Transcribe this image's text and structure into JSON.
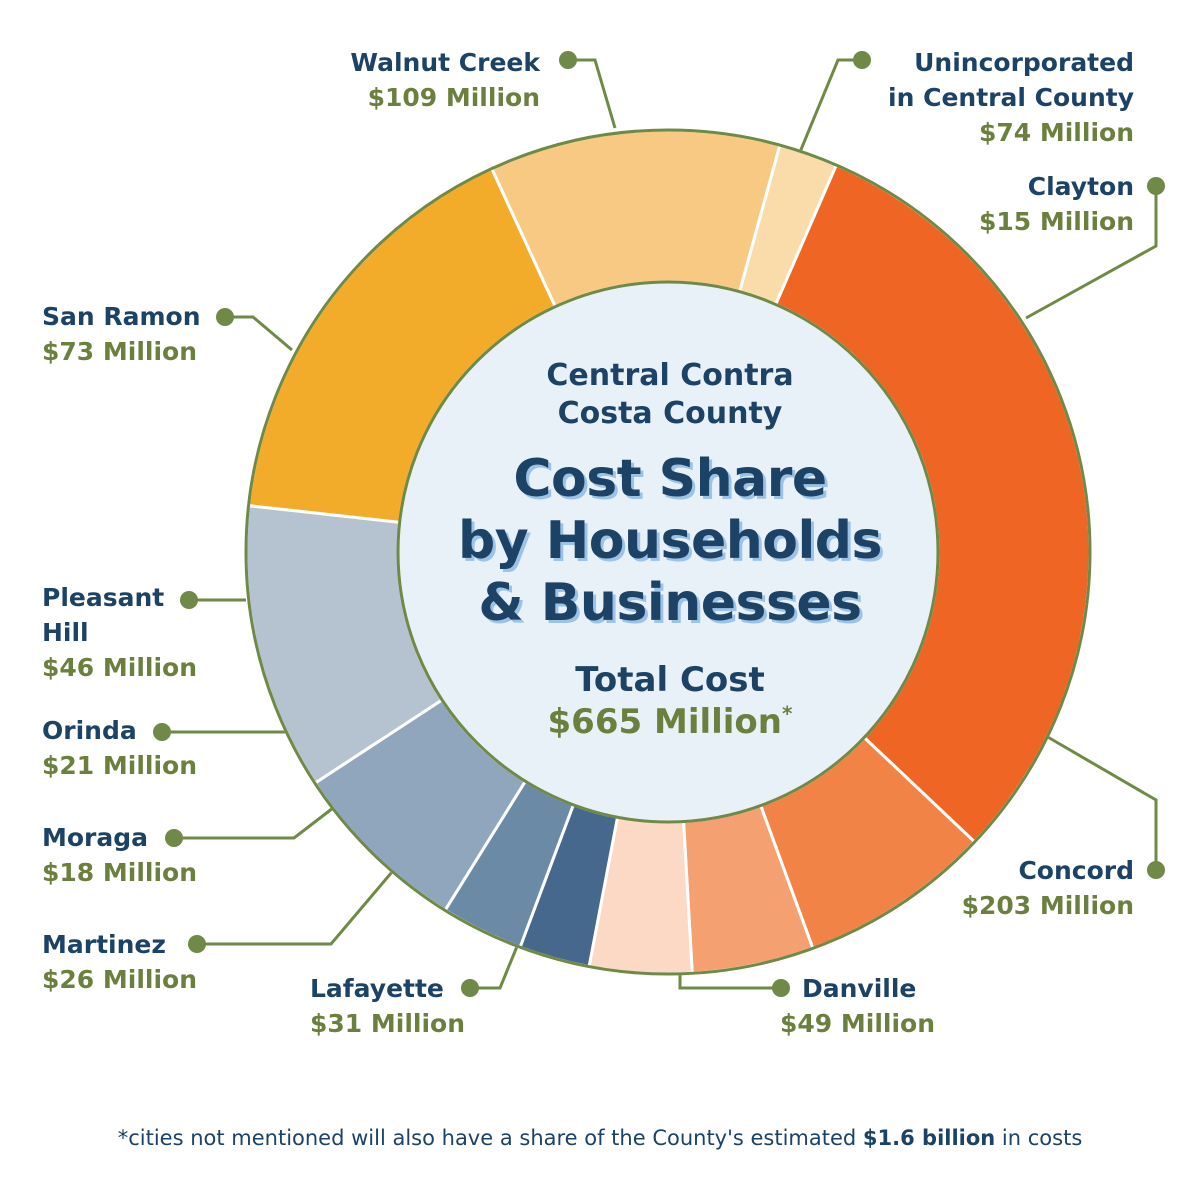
{
  "chart_data": {
    "type": "pie",
    "subtitle": [
      "Central Contra",
      "Costa County"
    ],
    "title": [
      "Cost Share",
      "by Households",
      "& Businesses"
    ],
    "total_label": "Total Cost",
    "total_value": "$665 Million",
    "total_marker": "*",
    "unit": "Million",
    "series": [
      {
        "name": "Concord",
        "value": 203,
        "label": "$203 Million",
        "color": "#ee6524"
      },
      {
        "name": "Danville",
        "value": 49,
        "label": "$49 Million",
        "color": "#f28346"
      },
      {
        "name": "Lafayette",
        "value": 31,
        "label": "$31 Million",
        "color": "#f4a070"
      },
      {
        "name": "Martinez",
        "value": 26,
        "label": "$26 Million",
        "color": "#fbd9c4"
      },
      {
        "name": "Moraga",
        "value": 18,
        "label": "$18 Million",
        "color": "#45688c"
      },
      {
        "name": "Orinda",
        "value": 21,
        "label": "$21 Million",
        "color": "#6b8aa6"
      },
      {
        "name": "Pleasant Hill",
        "name_lines": [
          "Pleasant",
          "Hill"
        ],
        "value": 46,
        "label": "$46 Million",
        "color": "#8fa6bc"
      },
      {
        "name": "San Ramon",
        "value": 73,
        "label": "$73 Million",
        "color": "#b5c3d1"
      },
      {
        "name": "Walnut Creek",
        "value": 109,
        "label": "$109 Million",
        "color": "#f3ac2a"
      },
      {
        "name": "Unincorporated in Central County",
        "name_lines": [
          "Unincorporated",
          "in Central County"
        ],
        "value": 74,
        "label": "$74 Million",
        "color": "#f7c982"
      },
      {
        "name": "Clayton",
        "value": 15,
        "label": "$15 Million",
        "color": "#f9dcaa"
      }
    ]
  },
  "colors": {
    "navy": "#1c4266",
    "olive": "#6b8aa6",
    "leader": "#6f8a46",
    "center_fill": "#e9f1f8"
  },
  "footnote": {
    "before": "*cities not mentioned will also have a share of the County's estimated ",
    "bold": "$1.6 billion",
    "after": " in costs"
  }
}
